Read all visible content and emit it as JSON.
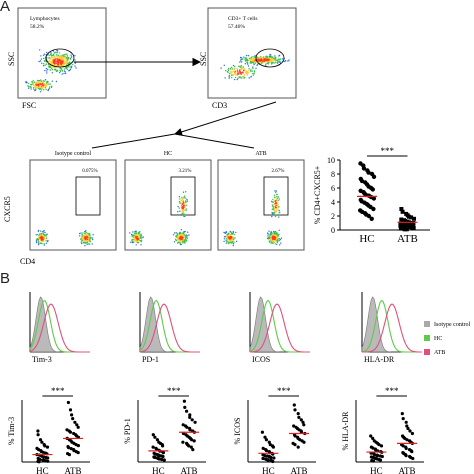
{
  "panels": {
    "a": "A",
    "b": "B"
  },
  "gating": {
    "plot1": {
      "xlabel": "FSC",
      "ylabel": "SSC",
      "gate_label": "Lymphocytes",
      "gate_value": "58.2%"
    },
    "plot2": {
      "xlabel": "CD3",
      "ylabel": "SSC",
      "gate_label": "CD3+ T cells",
      "gate_value": "57.46%"
    }
  },
  "cxcr5_plots": {
    "ylabel": "CXCR5",
    "xlabel": "CD4",
    "titles": [
      "Isotype control",
      "HC",
      "ATB"
    ],
    "gate_values": [
      "0.075%",
      "3.21%",
      "2.67%"
    ]
  },
  "histograms": {
    "markers": [
      "Tim-3",
      "PD-1",
      "ICOS",
      "HLA-DR"
    ],
    "legend": [
      {
        "name": "Isotype control",
        "color": "#a9a9a9"
      },
      {
        "name": "HC",
        "color": "#5ecb4a"
      },
      {
        "name": "ATB",
        "color": "#e0507a"
      }
    ]
  },
  "significance": "***",
  "chart_data": [
    {
      "type": "scatter",
      "title": "",
      "ylabel": "% CD4+CXCR5+",
      "categories": [
        "HC",
        "ATB"
      ],
      "ylim": [
        0,
        10
      ],
      "yticks": [
        0,
        2,
        4,
        6,
        8,
        10
      ],
      "mean": [
        4.8,
        1.1
      ],
      "series": [
        {
          "values": [
            9.5,
            9.2,
            8.8,
            8.5,
            8.2,
            8.0,
            7.6,
            7.3,
            7.0,
            6.8,
            6.5,
            6.2,
            6.0,
            5.8,
            5.6,
            5.4,
            5.2,
            5.0,
            4.9,
            4.7,
            4.5,
            4.3,
            4.1,
            3.9,
            3.7,
            3.5,
            3.3,
            3.0,
            2.8,
            2.6,
            2.4,
            2.2,
            2.0,
            1.6
          ]
        },
        {
          "values": [
            3.0,
            2.6,
            2.3,
            2.1,
            1.9,
            1.8,
            1.6,
            1.5,
            1.4,
            1.3,
            1.2,
            1.1,
            1.0,
            1.0,
            0.9,
            0.9,
            0.8,
            0.8,
            0.7,
            0.7,
            0.6,
            0.6,
            0.5,
            0.5,
            0.4,
            0.4,
            0.3,
            0.3,
            0.2,
            0.2,
            0.1,
            0.1
          ]
        }
      ]
    },
    {
      "type": "scatter",
      "title": "",
      "ylabel": "% Tim-3",
      "categories": [
        "HC",
        "ATB"
      ],
      "ylim": [
        0,
        25
      ],
      "mean": [
        3.0,
        9.5
      ],
      "series": [
        {
          "values": [
            12.5,
            11.0,
            9.0,
            8.0,
            7.0,
            6.5,
            6.0,
            5.5,
            5.0,
            4.6,
            4.2,
            3.9,
            3.6,
            3.3,
            3.0,
            2.8,
            2.6,
            2.3,
            2.0,
            1.8,
            1.6,
            1.4,
            1.2,
            1.0,
            0.8,
            0.6,
            0.5,
            0.3,
            0.2,
            0.1
          ]
        },
        {
          "values": [
            24.0,
            21.0,
            19.0,
            17.5,
            16.0,
            15.0,
            14.0,
            13.0,
            12.5,
            12.0,
            11.5,
            11.0,
            10.5,
            10.0,
            9.5,
            9.0,
            8.5,
            8.0,
            7.5,
            7.0,
            6.6,
            6.2,
            5.8,
            5.4,
            5.0,
            4.6,
            4.2,
            3.8,
            3.4,
            3.0
          ]
        }
      ]
    },
    {
      "type": "scatter",
      "title": "",
      "ylabel": "% PD-1",
      "categories": [
        "HC",
        "ATB"
      ],
      "ylim": [
        0,
        25
      ],
      "mean": [
        4.5,
        12.0
      ],
      "series": [
        {
          "values": [
            11.0,
            10.0,
            9.0,
            8.0,
            7.5,
            7.0,
            6.5,
            6.0,
            5.5,
            5.0,
            4.7,
            4.4,
            4.1,
            3.8,
            3.5,
            3.2,
            3.0,
            2.8,
            2.6,
            2.4,
            2.2,
            2.0,
            1.8,
            1.6,
            1.4,
            1.2,
            1.0,
            0.8
          ]
        },
        {
          "values": [
            24.5,
            22.0,
            20.5,
            19.0,
            18.0,
            17.0,
            16.0,
            15.0,
            14.5,
            14.0,
            13.5,
            13.0,
            12.5,
            12.0,
            11.5,
            11.0,
            10.5,
            10.0,
            9.5,
            9.0,
            8.5,
            8.0,
            7.5,
            7.0,
            6.5,
            6.0,
            5.0
          ]
        }
      ]
    },
    {
      "type": "scatter",
      "title": "",
      "ylabel": "% ICOS",
      "categories": [
        "HC",
        "ATB"
      ],
      "ylim": [
        0,
        25
      ],
      "mean": [
        3.5,
        11.5
      ],
      "series": [
        {
          "values": [
            12.0,
            10.0,
            9.0,
            8.0,
            7.0,
            6.5,
            6.0,
            5.5,
            5.0,
            4.6,
            4.2,
            3.8,
            3.5,
            3.2,
            2.9,
            2.6,
            2.4,
            2.2,
            2.0,
            1.8,
            1.6,
            1.4,
            1.2,
            1.0,
            0.8,
            0.6,
            0.4,
            0.2
          ]
        },
        {
          "values": [
            23.0,
            21.0,
            19.5,
            18.0,
            17.0,
            16.0,
            15.0,
            14.5,
            14.0,
            13.5,
            13.0,
            12.5,
            12.0,
            11.5,
            11.0,
            10.5,
            10.0,
            9.5,
            9.0,
            8.5,
            8.0,
            7.5,
            7.0,
            6.0
          ]
        }
      ]
    },
    {
      "type": "scatter",
      "title": "",
      "ylabel": "% HLA-DR",
      "categories": [
        "HC",
        "ATB"
      ],
      "ylim": [
        0,
        25
      ],
      "mean": [
        4.0,
        7.5
      ],
      "series": [
        {
          "values": [
            10.5,
            9.5,
            8.5,
            8.0,
            7.5,
            7.0,
            6.5,
            6.0,
            5.6,
            5.2,
            4.8,
            4.5,
            4.2,
            3.9,
            3.6,
            3.3,
            3.0,
            2.8,
            2.6,
            2.4,
            2.2,
            2.0,
            1.8,
            1.6,
            1.4,
            1.2,
            1.0,
            0.8,
            0.6,
            0.4
          ]
        },
        {
          "values": [
            19.5,
            17.5,
            16.0,
            14.5,
            13.5,
            12.5,
            11.5,
            10.5,
            10.0,
            9.5,
            9.0,
            8.5,
            8.0,
            7.5,
            7.0,
            6.5,
            6.0,
            5.5,
            5.0,
            4.6,
            4.2,
            3.8,
            3.4,
            3.0,
            2.6,
            2.2,
            1.8,
            1.4
          ]
        }
      ]
    }
  ]
}
